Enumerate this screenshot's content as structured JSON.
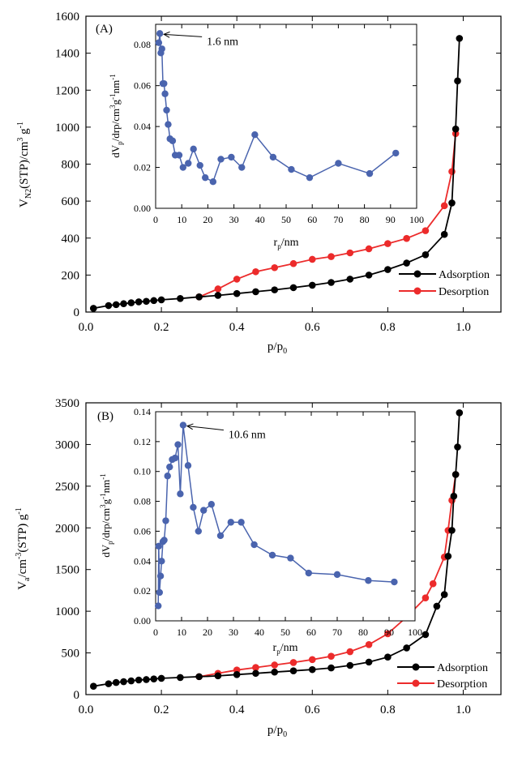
{
  "chart_data": [
    {
      "panel": "(A)",
      "type": "scatter",
      "title": "",
      "xlabel": "p/p0",
      "ylabel": "VN2(STP)/cm3 g-1",
      "xlim": [
        0.0,
        1.1
      ],
      "ylim": [
        0,
        1600
      ],
      "xticks": [
        "0.0",
        "0.2",
        "0.4",
        "0.6",
        "0.8",
        "1.0"
      ],
      "yticks": [
        "0",
        "200",
        "400",
        "600",
        "800",
        "1000",
        "1200",
        "1400",
        "1600"
      ],
      "series": [
        {
          "name": "Adsorption",
          "color": "#000000",
          "x": [
            0.02,
            0.06,
            0.08,
            0.1,
            0.12,
            0.14,
            0.16,
            0.18,
            0.2,
            0.25,
            0.3,
            0.35,
            0.4,
            0.45,
            0.5,
            0.55,
            0.6,
            0.65,
            0.7,
            0.75,
            0.8,
            0.85,
            0.9,
            0.95,
            0.97,
            0.98,
            0.985,
            0.99
          ],
          "y": [
            20,
            35,
            40,
            45,
            50,
            55,
            58,
            62,
            66,
            73,
            82,
            90,
            100,
            110,
            120,
            132,
            145,
            160,
            178,
            200,
            230,
            265,
            310,
            420,
            590,
            990,
            1250,
            1480
          ]
        },
        {
          "name": "Desorption",
          "color": "#ec2b2b",
          "x": [
            0.3,
            0.35,
            0.4,
            0.45,
            0.5,
            0.55,
            0.6,
            0.65,
            0.7,
            0.75,
            0.8,
            0.85,
            0.9,
            0.95,
            0.97,
            0.98
          ],
          "y": [
            82,
            125,
            178,
            218,
            240,
            262,
            285,
            300,
            320,
            342,
            370,
            398,
            440,
            575,
            760,
            965
          ]
        }
      ],
      "legend": "bottom-right",
      "inset": {
        "type": "line",
        "xlabel": "rp/nm",
        "ylabel": "dVp/drp/cm3g-1nm-1",
        "xlim": [
          0,
          100
        ],
        "ylim": [
          0.0,
          0.09
        ],
        "xticks": [
          "0",
          "10",
          "20",
          "30",
          "40",
          "50",
          "60",
          "70",
          "80",
          "90",
          "100"
        ],
        "yticks": [
          "0.00",
          "0.02",
          "0.04",
          "0.06",
          "0.08"
        ],
        "annotation": "1.6 nm",
        "peak": [
          1.6,
          0.0855
        ],
        "x": [
          1.2,
          1.6,
          2.0,
          2.4,
          2.8,
          3.2,
          3.6,
          4.2,
          4.8,
          5.5,
          6.5,
          7.5,
          9.0,
          10.5,
          12.5,
          14.5,
          17.0,
          19.0,
          22.0,
          25.0,
          29.0,
          33.0,
          38.0,
          45.0,
          52.0,
          59.0,
          70.0,
          82.0,
          92.0
        ],
        "y": [
          0.081,
          0.0855,
          0.076,
          0.078,
          0.061,
          0.061,
          0.056,
          0.048,
          0.041,
          0.034,
          0.033,
          0.026,
          0.026,
          0.02,
          0.022,
          0.029,
          0.021,
          0.015,
          0.013,
          0.024,
          0.025,
          0.02,
          0.036,
          0.025,
          0.019,
          0.015,
          0.022,
          0.017,
          0.027
        ]
      }
    },
    {
      "panel": "(B)",
      "type": "scatter",
      "title": "",
      "xlabel": "p/p0",
      "ylabel": "Va/cm-3(STP) g-1",
      "xlim": [
        0.0,
        1.1
      ],
      "ylim": [
        0,
        3500
      ],
      "xticks": [
        "0.0",
        "0.2",
        "0.4",
        "0.6",
        "0.8",
        "1.0"
      ],
      "yticks": [
        "0",
        "500",
        "1000",
        "1500",
        "2000",
        "2500",
        "3000",
        "3500"
      ],
      "series": [
        {
          "name": "Adsorption",
          "color": "#000000",
          "x": [
            0.02,
            0.06,
            0.08,
            0.1,
            0.12,
            0.14,
            0.16,
            0.18,
            0.2,
            0.25,
            0.3,
            0.35,
            0.4,
            0.45,
            0.5,
            0.55,
            0.6,
            0.65,
            0.7,
            0.75,
            0.8,
            0.85,
            0.9,
            0.93,
            0.95,
            0.96,
            0.97,
            0.975,
            0.98,
            0.985,
            0.99
          ],
          "y": [
            100,
            130,
            145,
            155,
            165,
            175,
            180,
            188,
            195,
            205,
            215,
            225,
            240,
            255,
            270,
            285,
            300,
            320,
            350,
            390,
            450,
            560,
            720,
            1060,
            1200,
            1660,
            1970,
            2380,
            2640,
            2970,
            3380
          ]
        },
        {
          "name": "Desorption",
          "color": "#ec2b2b",
          "x": [
            0.3,
            0.35,
            0.4,
            0.45,
            0.5,
            0.55,
            0.6,
            0.65,
            0.7,
            0.75,
            0.8,
            0.85,
            0.9,
            0.92,
            0.95,
            0.96,
            0.97,
            0.98
          ],
          "y": [
            215,
            255,
            295,
            325,
            355,
            385,
            420,
            460,
            515,
            600,
            730,
            930,
            1160,
            1330,
            1650,
            1970,
            2330,
            2640
          ]
        }
      ],
      "legend": "bottom-right",
      "inset": {
        "type": "line",
        "xlabel": "rp/nm",
        "ylabel": "dVp/drp/cm3g-1nm-1",
        "xlim": [
          0,
          100
        ],
        "ylim": [
          0.0,
          0.14
        ],
        "xticks": [
          "0",
          "10",
          "20",
          "30",
          "40",
          "50",
          "60",
          "70",
          "80",
          "90",
          "100"
        ],
        "yticks": [
          "0.00",
          "0.02",
          "0.04",
          "0.06",
          "0.08",
          "0.10",
          "0.12",
          "0.14"
        ],
        "annotation": "10.6 nm",
        "peak": [
          10.6,
          0.131
        ],
        "x": [
          1.0,
          1.2,
          1.5,
          1.9,
          2.3,
          2.8,
          3.3,
          3.9,
          4.6,
          5.4,
          6.4,
          7.5,
          8.6,
          9.5,
          10.6,
          12.5,
          14.5,
          16.5,
          18.5,
          21.5,
          25.0,
          29.0,
          33.0,
          38.0,
          45.0,
          52.0,
          59.0,
          70.0,
          82.0,
          92.0
        ],
        "y": [
          0.01,
          0.05,
          0.019,
          0.03,
          0.04,
          0.053,
          0.054,
          0.067,
          0.097,
          0.103,
          0.108,
          0.109,
          0.118,
          0.085,
          0.131,
          0.104,
          0.076,
          0.06,
          0.074,
          0.078,
          0.057,
          0.066,
          0.066,
          0.051,
          0.044,
          0.042,
          0.032,
          0.031,
          0.027,
          0.026
        ]
      }
    }
  ]
}
